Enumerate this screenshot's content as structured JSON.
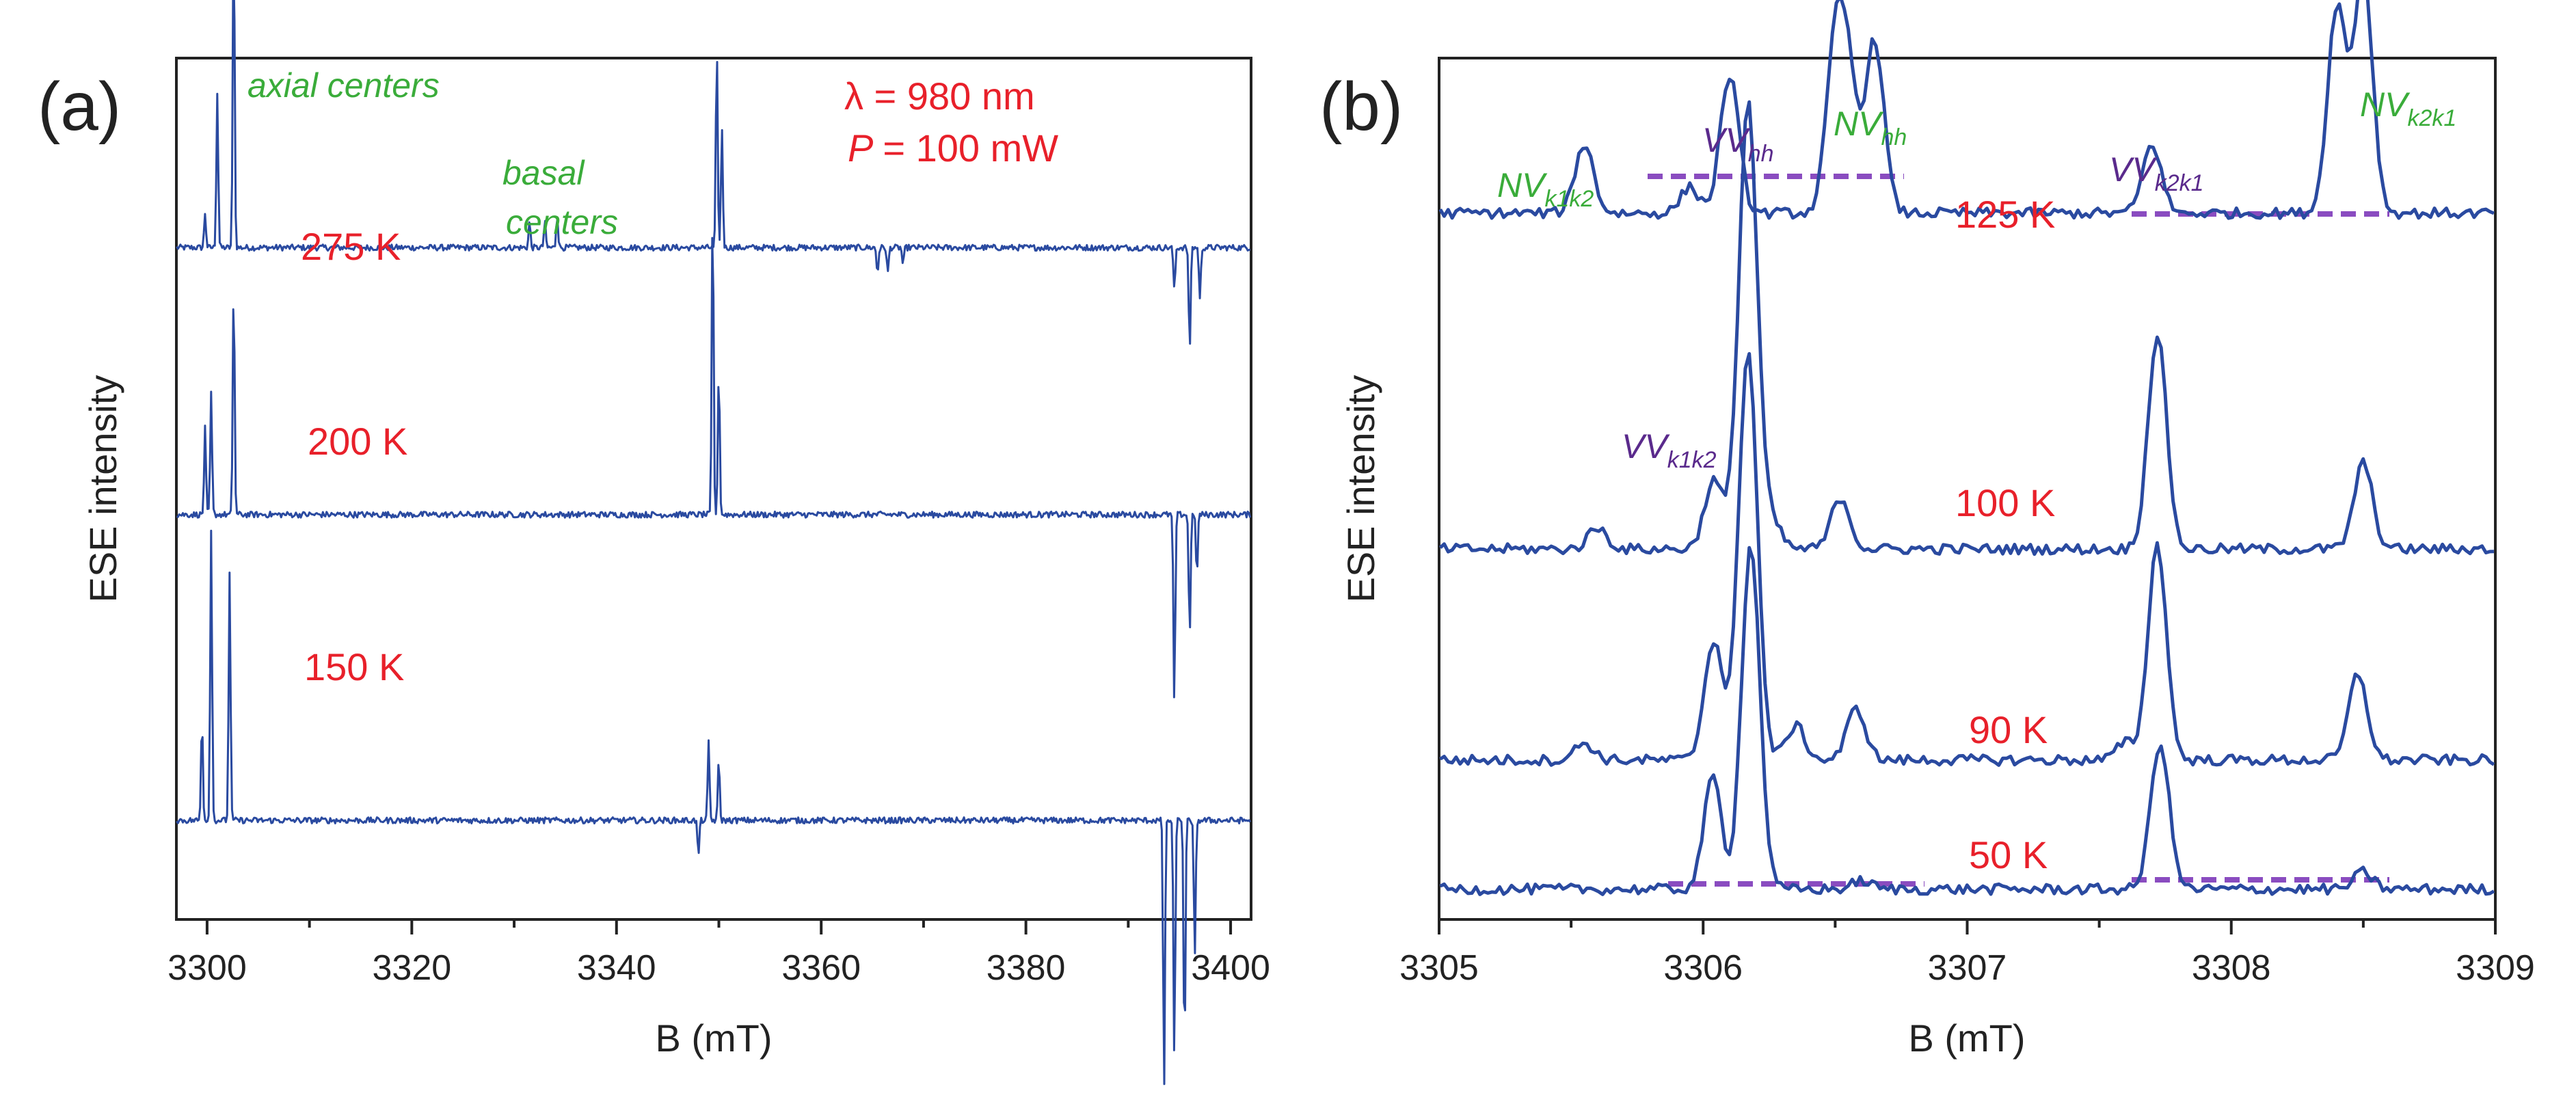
{
  "panels": [
    {
      "label": "(a)",
      "xlabel": "B (mT)",
      "ylabel": "ESE intensity",
      "xlim": [
        3297,
        3402
      ],
      "xticks": [
        "3300",
        "3320",
        "3340",
        "3360",
        "3380",
        "3400"
      ],
      "conditions": {
        "wavelength": "λ = 980 nm",
        "power_var": "P",
        "power_val": "= 100 mW"
      },
      "annotations": {
        "axial": "axial centers",
        "basal1": "basal",
        "basal2": "centers"
      }
    },
    {
      "label": "(b)",
      "xlabel": "B (mT)",
      "ylabel": "ESE intensity",
      "xlim": [
        3305,
        3309
      ],
      "xticks": [
        "3305",
        "3306",
        "3307",
        "3308",
        "3309"
      ],
      "annotations": {
        "nv_k1k2": {
          "main": "NV",
          "sub": "k1k2"
        },
        "vv_hh": {
          "main": "VV",
          "sub": "hh"
        },
        "nv_hh": {
          "main": "NV",
          "sub": "hh"
        },
        "vv_k2k1": {
          "main": "VV",
          "sub": "k2k1"
        },
        "nv_k2k1": {
          "main": "NV",
          "sub": "k2k1"
        },
        "vv_k1k2": {
          "main": "VV",
          "sub": "k1k2"
        }
      }
    }
  ],
  "chart_data": [
    {
      "type": "line",
      "title": "(a)",
      "xlabel": "B (mT)",
      "ylabel": "ESE intensity",
      "xlim": [
        3297,
        3402
      ],
      "series": [
        {
          "name": "275 K",
          "offset": 0.78,
          "peaks": [
            [
              3299.8,
              0.04
            ],
            [
              3301.0,
              0.18
            ],
            [
              3302.6,
              0.38
            ],
            [
              3331.5,
              0.03
            ],
            [
              3333.0,
              0.03
            ],
            [
              3334.2,
              0.04
            ],
            [
              3349.8,
              0.23
            ],
            [
              3350.3,
              0.14
            ],
            [
              3365.5,
              -0.03
            ],
            [
              3366.5,
              -0.03
            ],
            [
              3368.0,
              -0.02
            ],
            [
              3394.5,
              -0.05
            ],
            [
              3396.0,
              -0.12
            ],
            [
              3397.0,
              -0.06
            ]
          ]
        },
        {
          "name": "200 K",
          "offset": 0.47,
          "peaks": [
            [
              3299.8,
              0.1
            ],
            [
              3300.4,
              0.14
            ],
            [
              3302.6,
              0.27
            ],
            [
              3349.4,
              0.36
            ],
            [
              3350.0,
              0.17
            ],
            [
              3394.5,
              -0.22
            ],
            [
              3396.0,
              -0.14
            ],
            [
              3396.7,
              -0.07
            ]
          ]
        },
        {
          "name": "150 K",
          "offset": 0.115,
          "peaks": [
            [
              3299.5,
              0.12
            ],
            [
              3300.4,
              0.34
            ],
            [
              3302.2,
              0.29
            ],
            [
              3348.0,
              -0.04
            ],
            [
              3349.0,
              0.09
            ],
            [
              3350.0,
              0.07
            ],
            [
              3393.5,
              -0.31
            ],
            [
              3394.5,
              -0.28
            ],
            [
              3395.5,
              -0.27
            ],
            [
              3396.5,
              -0.16
            ]
          ]
        }
      ]
    },
    {
      "type": "line",
      "title": "(b)",
      "xlabel": "B (mT)",
      "ylabel": "ESE intensity",
      "xlim": [
        3305,
        3309
      ],
      "series": [
        {
          "name": "125 K",
          "offset": 0.82,
          "peaks": [
            [
              3305.55,
              0.08
            ],
            [
              3305.95,
              0.03
            ],
            [
              3306.1,
              0.16
            ],
            [
              3306.5,
              0.18
            ],
            [
              3306.55,
              0.14
            ],
            [
              3306.65,
              0.2
            ],
            [
              3307.7,
              0.08
            ],
            [
              3308.4,
              0.24
            ],
            [
              3308.5,
              0.28
            ]
          ]
        },
        {
          "name": "100 K",
          "offset": 0.43,
          "peaks": [
            [
              3305.6,
              0.025
            ],
            [
              3306.04,
              0.08
            ],
            [
              3306.17,
              0.52
            ],
            [
              3306.26,
              0.03
            ],
            [
              3306.52,
              0.06
            ],
            [
              3307.72,
              0.25
            ],
            [
              3308.5,
              0.1
            ]
          ]
        },
        {
          "name": "90 K",
          "offset": 0.185,
          "peaks": [
            [
              3305.55,
              0.02
            ],
            [
              3306.04,
              0.14
            ],
            [
              3306.17,
              0.48
            ],
            [
              3306.35,
              0.04
            ],
            [
              3306.58,
              0.06
            ],
            [
              3307.6,
              0.02
            ],
            [
              3307.72,
              0.25
            ],
            [
              3308.48,
              0.1
            ]
          ]
        },
        {
          "name": "50 K",
          "offset": 0.035,
          "peaks": [
            [
              3306.04,
              0.14
            ],
            [
              3306.08,
              -0.02
            ],
            [
              3306.18,
              0.4
            ],
            [
              3306.6,
              0.01
            ],
            [
              3307.73,
              0.17
            ],
            [
              3308.5,
              0.02
            ]
          ]
        }
      ]
    }
  ]
}
